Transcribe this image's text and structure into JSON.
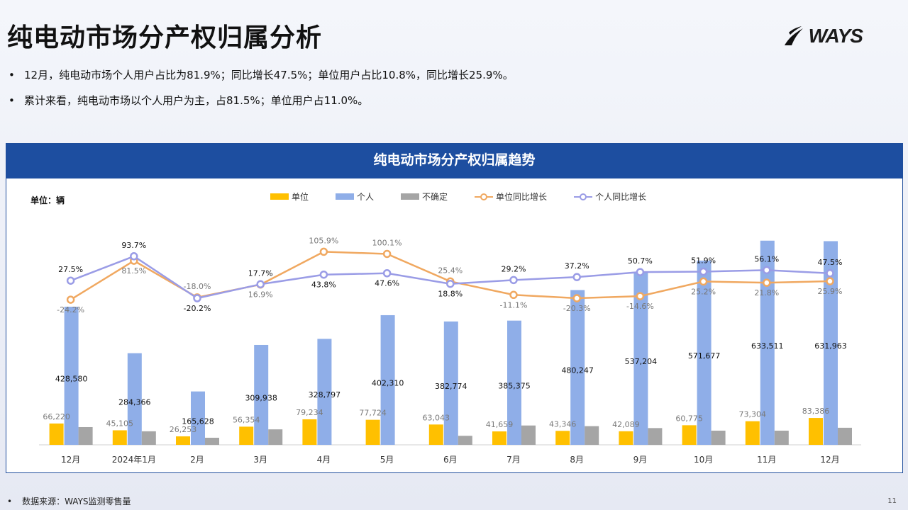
{
  "title": "纯电动市场分产权归属分析",
  "logo_text": "WAYS",
  "bullets": [
    "12月，纯电动市场个人用户占比为81.9%；同比增长47.5%；单位用户占比10.8%，同比增长25.9%。",
    "累计来看，纯电动市场以个人用户为主，占81.5%；单位用户占11.0%。"
  ],
  "panel_title": "纯电动市场分产权归属趋势",
  "unit_label": "单位：辆",
  "source": "数据来源：WAYS监测零售量",
  "page_number": "11",
  "colors": {
    "unit": "#ffc000",
    "personal": "#8faee8",
    "uncertain": "#a5a5a5",
    "unit_growth": "#f0a860",
    "personal_growth": "#9a9ce6",
    "header": "#1d4ea0"
  },
  "chart_data": {
    "type": "bar",
    "categories": [
      "12月",
      "2024年1月",
      "2月",
      "3月",
      "4月",
      "5月",
      "6月",
      "7月",
      "8月",
      "9月",
      "10月",
      "11月",
      "12月"
    ],
    "series": [
      {
        "name": "单位",
        "type": "bar",
        "values": [
          66220,
          45105,
          26253,
          56354,
          79234,
          77724,
          63043,
          41659,
          43346,
          42089,
          60775,
          73304,
          83386
        ]
      },
      {
        "name": "个人",
        "type": "bar",
        "values": [
          428580,
          284366,
          165628,
          309938,
          328797,
          402310,
          382774,
          385375,
          480247,
          537204,
          571677,
          633511,
          631963
        ]
      },
      {
        "name": "不确定",
        "type": "bar",
        "values": [
          55000,
          42000,
          22000,
          48000,
          null,
          null,
          28000,
          60000,
          58000,
          52000,
          44000,
          44000,
          53000
        ]
      },
      {
        "name": "单位同比增长",
        "type": "line",
        "values": [
          -24.2,
          81.5,
          -18.0,
          16.9,
          105.9,
          100.1,
          25.4,
          -11.1,
          -20.3,
          -14.6,
          25.2,
          21.8,
          25.9
        ]
      },
      {
        "name": "个人同比增长",
        "type": "line",
        "values": [
          27.5,
          93.7,
          -20.2,
          17.7,
          43.8,
          47.6,
          18.8,
          29.2,
          37.2,
          50.7,
          51.9,
          56.1,
          47.5
        ]
      }
    ],
    "bar_labels": {
      "单位": [
        "66,220",
        "45,105",
        "26,253",
        "56,354",
        "79,234",
        "77,724",
        "63,043",
        "41,659",
        "43,346",
        "42,089",
        "60,775",
        "73,304",
        "83,386"
      ],
      "个人": [
        "428,580",
        "284,366",
        "165,628",
        "309,938",
        "328,797",
        "402,310",
        "382,774",
        "385,375",
        "480,247",
        "537,204",
        "571,677",
        "633,511",
        "631,963"
      ]
    },
    "line_labels": {
      "单位同比增长": [
        "-24.2%",
        "81.5%",
        "-18.0%",
        "16.9%",
        "105.9%",
        "100.1%",
        "25.4%",
        "-11.1%",
        "-20.3%",
        "-14.6%",
        "25.2%",
        "21.8%",
        "25.9%"
      ],
      "个人同比增长": [
        "27.5%",
        "93.7%",
        "-20.2%",
        "17.7%",
        "43.8%",
        "47.6%",
        "18.8%",
        "29.2%",
        "37.2%",
        "50.7%",
        "51.9%",
        "56.1%",
        "47.5%"
      ]
    },
    "legend_position": "top",
    "grid": false
  }
}
